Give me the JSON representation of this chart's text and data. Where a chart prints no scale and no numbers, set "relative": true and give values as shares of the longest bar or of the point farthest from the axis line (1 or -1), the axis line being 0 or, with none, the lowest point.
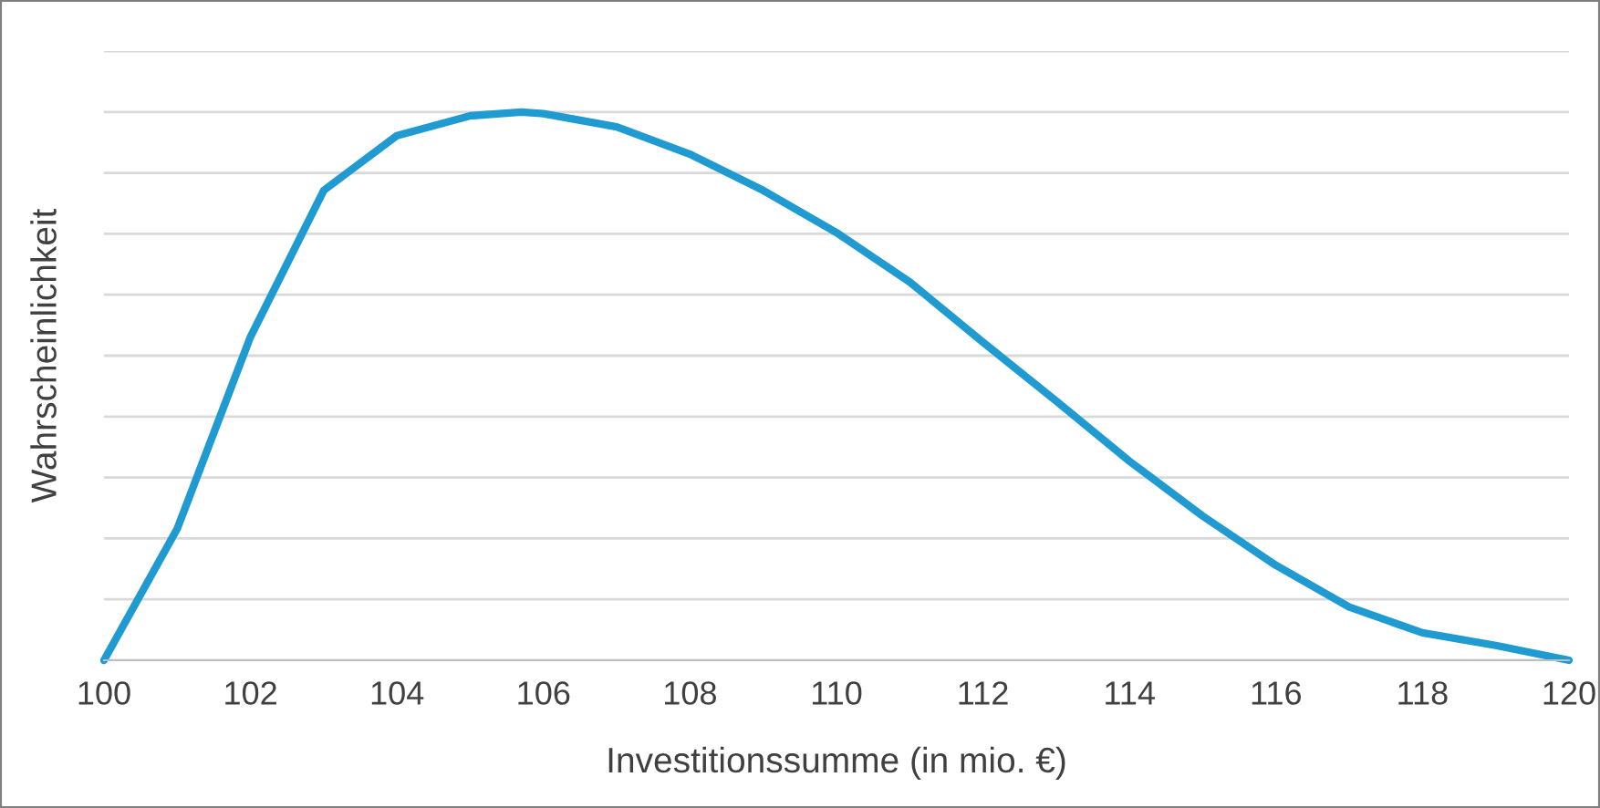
{
  "chart_data": {
    "type": "line",
    "relative": true,
    "xlabel": "Investitionssumme (in mio. €)",
    "ylabel": "Wahrscheinlichkeit",
    "xlim": [
      100,
      120
    ],
    "xticks": [
      100,
      102,
      104,
      106,
      108,
      110,
      112,
      114,
      116,
      118,
      120
    ],
    "grid": "y",
    "marker": "none",
    "line_style": "solid",
    "series": [
      {
        "color": "#1f9bd1",
        "x": [
          100,
          101,
          102,
          103,
          104,
          105,
          105.7,
          106,
          107,
          108,
          109,
          110,
          111,
          112,
          113,
          114,
          115,
          116,
          117,
          118,
          119,
          120
        ],
        "values": [
          0,
          0.24,
          0.59,
          0.857,
          0.957,
          0.993,
          1,
          0.997,
          0.973,
          0.923,
          0.857,
          0.78,
          0.69,
          0.58,
          0.473,
          0.363,
          0.263,
          0.173,
          0.097,
          0.05,
          0.027,
          0
        ]
      }
    ]
  }
}
